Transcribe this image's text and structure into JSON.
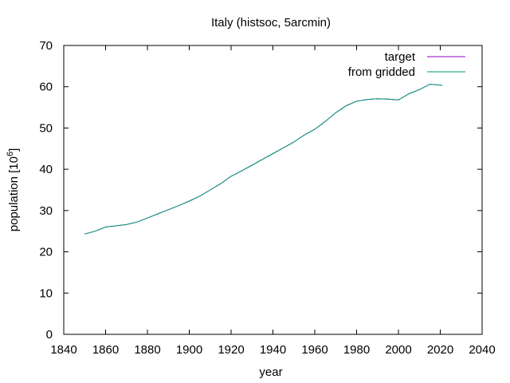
{
  "chart_data": {
    "type": "line",
    "title": "Italy (histsoc, 5arcmin)",
    "xlabel": "year",
    "ylabel_base": "population [10",
    "ylabel_sup": "6",
    "ylabel_end": "]",
    "xlim": [
      1840,
      2040
    ],
    "ylim": [
      0,
      70
    ],
    "xticks": [
      1840,
      1860,
      1880,
      1900,
      1920,
      1940,
      1960,
      1980,
      2000,
      2020,
      2040
    ],
    "yticks": [
      0,
      10,
      20,
      30,
      40,
      50,
      60,
      70
    ],
    "grid": false,
    "legend_position": "top-right",
    "series": [
      {
        "name": "target",
        "color": "#9400d3",
        "x": [
          1850,
          1855,
          1860,
          1865,
          1870,
          1875,
          1880,
          1885,
          1890,
          1895,
          1900,
          1905,
          1910,
          1915,
          1920,
          1925,
          1930,
          1935,
          1940,
          1945,
          1950,
          1955,
          1960,
          1965,
          1970,
          1975,
          1980,
          1985,
          1990,
          1995,
          2000,
          2005,
          2010,
          2015,
          2020,
          2021
        ],
        "y": [
          24.3,
          25.0,
          26.0,
          26.3,
          26.6,
          27.2,
          28.2,
          29.2,
          30.2,
          31.2,
          32.3,
          33.5,
          35.0,
          36.5,
          38.3,
          39.6,
          41.0,
          42.4,
          43.8,
          45.2,
          46.6,
          48.3,
          49.7,
          51.6,
          53.7,
          55.4,
          56.5,
          56.9,
          57.1,
          57.0,
          56.8,
          58.3,
          59.3,
          60.6,
          60.4,
          60.3
        ]
      },
      {
        "name": "from gridded",
        "color": "#009e73",
        "x": [
          1850,
          1855,
          1860,
          1865,
          1870,
          1875,
          1880,
          1885,
          1890,
          1895,
          1900,
          1905,
          1910,
          1915,
          1920,
          1925,
          1930,
          1935,
          1940,
          1945,
          1950,
          1955,
          1960,
          1965,
          1970,
          1975,
          1980,
          1985,
          1990,
          1995,
          2000,
          2005,
          2010,
          2015,
          2020,
          2021
        ],
        "y": [
          24.3,
          25.0,
          26.0,
          26.3,
          26.6,
          27.2,
          28.2,
          29.2,
          30.2,
          31.2,
          32.3,
          33.5,
          35.0,
          36.5,
          38.3,
          39.6,
          41.0,
          42.4,
          43.8,
          45.2,
          46.6,
          48.3,
          49.7,
          51.6,
          53.7,
          55.4,
          56.5,
          56.9,
          57.1,
          57.0,
          56.8,
          58.3,
          59.3,
          60.6,
          60.4,
          60.3
        ]
      }
    ]
  }
}
